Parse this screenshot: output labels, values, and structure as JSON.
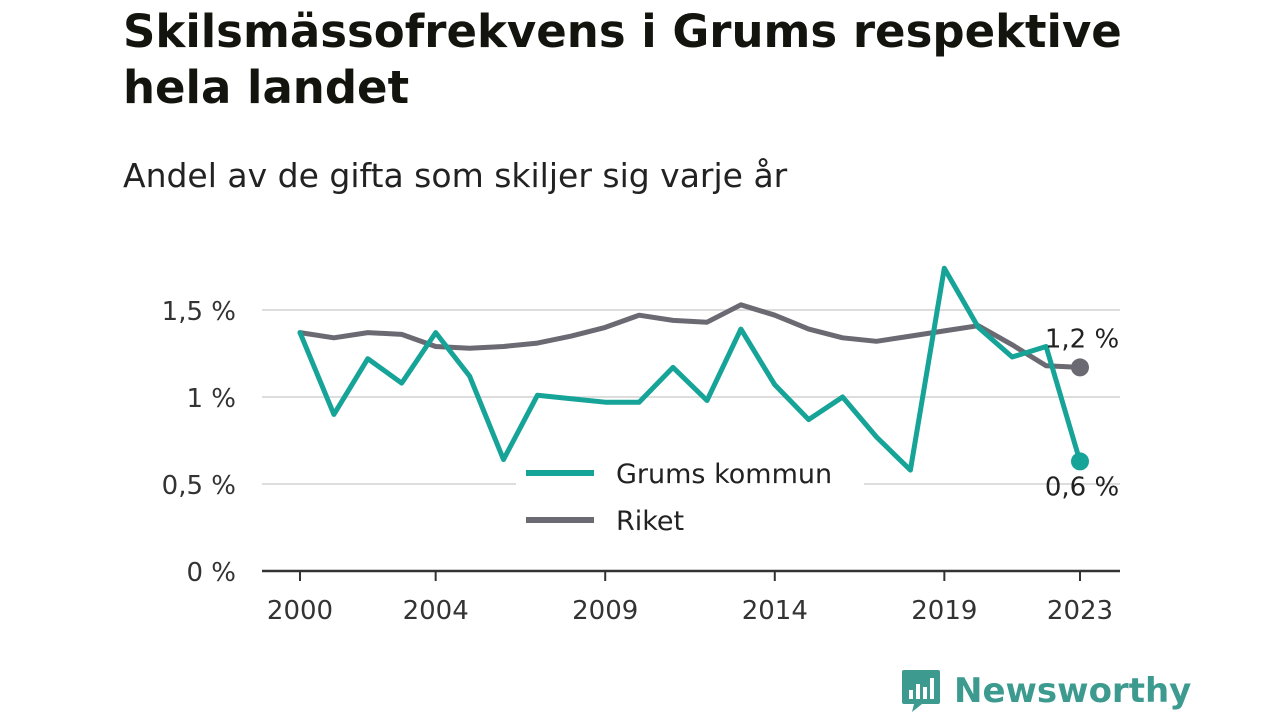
{
  "title": "Skilsmässofrekvens i Grums respektive hela landet",
  "subtitle": "Andel av de gifta som skiljer sig varje år",
  "brand": {
    "name": "Newsworthy",
    "icon": "newsworthy-logo-icon"
  },
  "colors": {
    "grums": "#16a398",
    "riket": "#6b6a72",
    "grid": "#dddddd",
    "axis": "#333333",
    "brand": "#3c9a8f"
  },
  "chart_data": {
    "type": "line",
    "x": [
      2000,
      2001,
      2002,
      2003,
      2004,
      2005,
      2006,
      2007,
      2008,
      2009,
      2010,
      2011,
      2012,
      2013,
      2014,
      2015,
      2016,
      2017,
      2018,
      2019,
      2020,
      2021,
      2022,
      2023
    ],
    "series": [
      {
        "name": "Grums kommun",
        "color": "#16a398",
        "values": [
          1.37,
          0.9,
          1.22,
          1.08,
          1.37,
          1.12,
          0.64,
          1.01,
          0.99,
          0.97,
          0.97,
          1.17,
          0.98,
          1.39,
          1.07,
          0.87,
          1.0,
          0.77,
          0.58,
          1.74,
          1.4,
          1.23,
          1.29,
          0.63
        ],
        "end_label": "0,6 %"
      },
      {
        "name": "Riket",
        "color": "#6b6a72",
        "values": [
          1.37,
          1.34,
          1.37,
          1.36,
          1.29,
          1.28,
          1.29,
          1.31,
          1.35,
          1.4,
          1.47,
          1.44,
          1.43,
          1.53,
          1.47,
          1.39,
          1.34,
          1.32,
          1.35,
          1.38,
          1.41,
          1.3,
          1.18,
          1.17
        ],
        "end_label": "1,2 %"
      }
    ],
    "yticks": [
      {
        "value": 0,
        "label": "0 %"
      },
      {
        "value": 0.5,
        "label": "0,5 %"
      },
      {
        "value": 1,
        "label": "1 %"
      },
      {
        "value": 1.5,
        "label": "1,5 %"
      }
    ],
    "xticks": [
      {
        "value": 2000,
        "label": "2000"
      },
      {
        "value": 2004,
        "label": "2004"
      },
      {
        "value": 2009,
        "label": "2009"
      },
      {
        "value": 2014,
        "label": "2014"
      },
      {
        "value": 2019,
        "label": "2019"
      },
      {
        "value": 2023,
        "label": "2023"
      }
    ],
    "ylim": [
      0,
      1.8
    ],
    "grid": true,
    "legend_position": "bottom-center",
    "xlabel": "",
    "ylabel": ""
  }
}
